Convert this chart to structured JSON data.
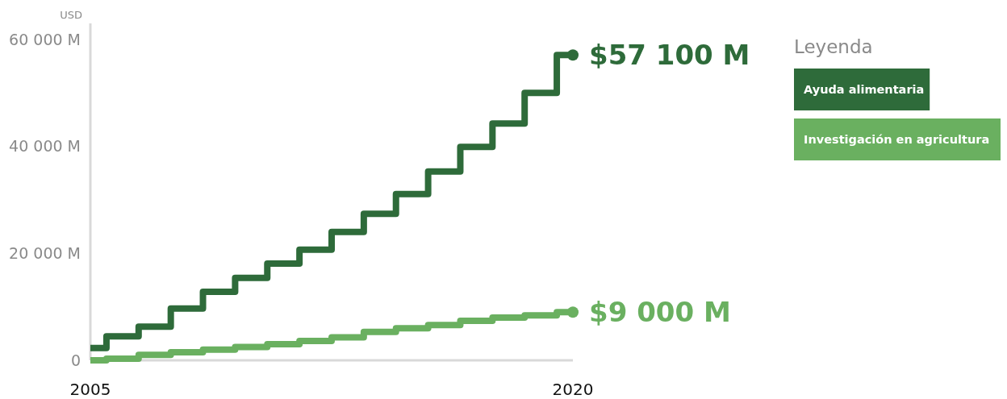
{
  "chart_data": {
    "type": "step",
    "ylabel": "USD",
    "legend_title": "Leyenda",
    "legend": "top right",
    "x": [
      2005,
      2006,
      2007,
      2008,
      2009,
      2010,
      2011,
      2012,
      2013,
      2014,
      2015,
      2016,
      2017,
      2018,
      2019,
      2020
    ],
    "xlim": [
      2005,
      2020
    ],
    "xticks": [
      2005,
      2020
    ],
    "ylim": [
      0,
      63000
    ],
    "yticks": [
      0,
      {
        "value": 20000,
        "label": "20 000 M"
      },
      {
        "value": 40000,
        "label": "40 000 M"
      },
      {
        "value": 60000,
        "label": "60 000 M"
      }
    ],
    "grid": false,
    "series": [
      {
        "name": "Ayuda alimentaria",
        "color": "#2e6b3a",
        "values": [
          2300,
          4500,
          6300,
          9700,
          12800,
          15400,
          18100,
          20700,
          24000,
          27400,
          31100,
          35300,
          39900,
          44300,
          50000,
          57100
        ],
        "value_labels": [
          null,
          null,
          null,
          null,
          null,
          null,
          null,
          null,
          null,
          null,
          null,
          null,
          null,
          null,
          null,
          "$57 100 M"
        ]
      },
      {
        "name": "Investigación en agricultura",
        "color": "#6ab060",
        "values": [
          0,
          300,
          1000,
          1500,
          2000,
          2500,
          3000,
          3600,
          4300,
          5300,
          6000,
          6600,
          7400,
          8000,
          8400,
          9000
        ],
        "value_labels": [
          null,
          null,
          null,
          null,
          null,
          null,
          null,
          null,
          null,
          null,
          null,
          null,
          null,
          null,
          null,
          "$9 000 M"
        ]
      }
    ]
  }
}
